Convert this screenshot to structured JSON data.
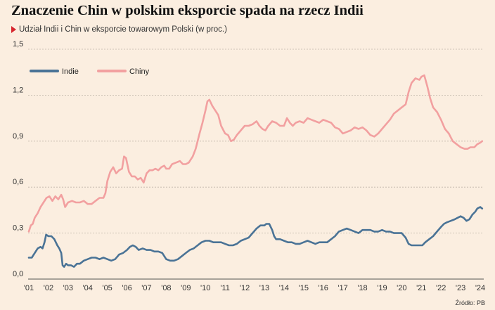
{
  "title": "Znaczenie Chin w polskim eksporcie spada na rzecz Indii",
  "subtitle": "Udział Indii i Chin w eksporcie towarowym Polski (w proc.)",
  "source": "Źródło: PB",
  "colors": {
    "background": "#fbeee0",
    "india": "#4a7396",
    "china": "#f2a0a0",
    "accent": "#d7262e"
  },
  "chart_data": {
    "type": "line",
    "title": "Znaczenie Chin w polskim eksporcie spada na rzecz Indii",
    "subtitle": "Udział Indii i Chin w eksporcie towarowym Polski (w proc.)",
    "xlim": [
      2001,
      2024.2
    ],
    "ylim": [
      0,
      1.5
    ],
    "x_ticks": [
      {
        "value": 2001,
        "label": "'01"
      },
      {
        "value": 2002,
        "label": "'02"
      },
      {
        "value": 2003,
        "label": "'03"
      },
      {
        "value": 2004,
        "label": "'04"
      },
      {
        "value": 2005,
        "label": "'05"
      },
      {
        "value": 2006,
        "label": "'06"
      },
      {
        "value": 2007,
        "label": "'07"
      },
      {
        "value": 2008,
        "label": "'08"
      },
      {
        "value": 2009,
        "label": "'09"
      },
      {
        "value": 2010,
        "label": "'10"
      },
      {
        "value": 2011,
        "label": "'11"
      },
      {
        "value": 2012,
        "label": "'12"
      },
      {
        "value": 2013,
        "label": "'13"
      },
      {
        "value": 2014,
        "label": "'14"
      },
      {
        "value": 2015,
        "label": "'15"
      },
      {
        "value": 2016,
        "label": "'16"
      },
      {
        "value": 2017,
        "label": "'17"
      },
      {
        "value": 2018,
        "label": "'18"
      },
      {
        "value": 2019,
        "label": "'19"
      },
      {
        "value": 2020,
        "label": "'20"
      },
      {
        "value": 2021,
        "label": "'21"
      },
      {
        "value": 2022,
        "label": "'22"
      },
      {
        "value": 2023,
        "label": "'23"
      },
      {
        "value": 2024,
        "label": "'24"
      }
    ],
    "y_ticks": [
      {
        "value": 0,
        "label": "0,0"
      },
      {
        "value": 0.3,
        "label": "0,3"
      },
      {
        "value": 0.6,
        "label": "0,6"
      },
      {
        "value": 0.9,
        "label": "0,9"
      },
      {
        "value": 1.2,
        "label": "1,2"
      },
      {
        "value": 1.5,
        "label": "1,5"
      }
    ],
    "grid": true,
    "legend_position": "top-left",
    "series": [
      {
        "name": "Indie",
        "color": "#4a7396",
        "points": [
          [
            2001.0,
            0.14
          ],
          [
            2001.15,
            0.14
          ],
          [
            2001.3,
            0.17
          ],
          [
            2001.45,
            0.2
          ],
          [
            2001.6,
            0.21
          ],
          [
            2001.7,
            0.2
          ],
          [
            2001.8,
            0.24
          ],
          [
            2001.88,
            0.29
          ],
          [
            2002.0,
            0.28
          ],
          [
            2002.15,
            0.28
          ],
          [
            2002.3,
            0.26
          ],
          [
            2002.45,
            0.22
          ],
          [
            2002.55,
            0.2
          ],
          [
            2002.65,
            0.17
          ],
          [
            2002.72,
            0.09
          ],
          [
            2002.8,
            0.08
          ],
          [
            2002.9,
            0.1
          ],
          [
            2003.0,
            0.09
          ],
          [
            2003.15,
            0.09
          ],
          [
            2003.3,
            0.08
          ],
          [
            2003.45,
            0.1
          ],
          [
            2003.6,
            0.1
          ],
          [
            2003.8,
            0.12
          ],
          [
            2004.0,
            0.13
          ],
          [
            2004.2,
            0.14
          ],
          [
            2004.4,
            0.14
          ],
          [
            2004.6,
            0.13
          ],
          [
            2004.8,
            0.14
          ],
          [
            2005.0,
            0.13
          ],
          [
            2005.2,
            0.12
          ],
          [
            2005.4,
            0.13
          ],
          [
            2005.6,
            0.16
          ],
          [
            2005.8,
            0.17
          ],
          [
            2006.0,
            0.19
          ],
          [
            2006.15,
            0.21
          ],
          [
            2006.3,
            0.22
          ],
          [
            2006.45,
            0.21
          ],
          [
            2006.6,
            0.19
          ],
          [
            2006.8,
            0.2
          ],
          [
            2007.0,
            0.19
          ],
          [
            2007.2,
            0.19
          ],
          [
            2007.4,
            0.18
          ],
          [
            2007.6,
            0.18
          ],
          [
            2007.8,
            0.17
          ],
          [
            2008.0,
            0.13
          ],
          [
            2008.2,
            0.12
          ],
          [
            2008.4,
            0.12
          ],
          [
            2008.6,
            0.13
          ],
          [
            2008.8,
            0.15
          ],
          [
            2009.0,
            0.17
          ],
          [
            2009.2,
            0.19
          ],
          [
            2009.4,
            0.2
          ],
          [
            2009.6,
            0.22
          ],
          [
            2009.8,
            0.24
          ],
          [
            2010.0,
            0.25
          ],
          [
            2010.2,
            0.25
          ],
          [
            2010.4,
            0.24
          ],
          [
            2010.6,
            0.24
          ],
          [
            2010.8,
            0.24
          ],
          [
            2011.0,
            0.23
          ],
          [
            2011.2,
            0.22
          ],
          [
            2011.4,
            0.22
          ],
          [
            2011.6,
            0.23
          ],
          [
            2011.8,
            0.25
          ],
          [
            2012.0,
            0.26
          ],
          [
            2012.2,
            0.27
          ],
          [
            2012.4,
            0.3
          ],
          [
            2012.6,
            0.33
          ],
          [
            2012.8,
            0.35
          ],
          [
            2013.0,
            0.35
          ],
          [
            2013.1,
            0.36
          ],
          [
            2013.25,
            0.36
          ],
          [
            2013.4,
            0.32
          ],
          [
            2013.5,
            0.28
          ],
          [
            2013.6,
            0.26
          ],
          [
            2013.8,
            0.26
          ],
          [
            2014.0,
            0.25
          ],
          [
            2014.2,
            0.24
          ],
          [
            2014.4,
            0.24
          ],
          [
            2014.6,
            0.23
          ],
          [
            2014.8,
            0.23
          ],
          [
            2015.0,
            0.24
          ],
          [
            2015.2,
            0.25
          ],
          [
            2015.4,
            0.24
          ],
          [
            2015.6,
            0.23
          ],
          [
            2015.8,
            0.24
          ],
          [
            2016.0,
            0.24
          ],
          [
            2016.2,
            0.24
          ],
          [
            2016.4,
            0.26
          ],
          [
            2016.6,
            0.28
          ],
          [
            2016.8,
            0.31
          ],
          [
            2017.0,
            0.32
          ],
          [
            2017.2,
            0.33
          ],
          [
            2017.4,
            0.32
          ],
          [
            2017.6,
            0.31
          ],
          [
            2017.8,
            0.3
          ],
          [
            2018.0,
            0.32
          ],
          [
            2018.2,
            0.32
          ],
          [
            2018.4,
            0.32
          ],
          [
            2018.6,
            0.31
          ],
          [
            2018.8,
            0.31
          ],
          [
            2019.0,
            0.32
          ],
          [
            2019.2,
            0.31
          ],
          [
            2019.4,
            0.31
          ],
          [
            2019.6,
            0.3
          ],
          [
            2019.8,
            0.3
          ],
          [
            2020.0,
            0.3
          ],
          [
            2020.2,
            0.27
          ],
          [
            2020.35,
            0.23
          ],
          [
            2020.5,
            0.22
          ],
          [
            2020.7,
            0.22
          ],
          [
            2020.9,
            0.22
          ],
          [
            2021.05,
            0.22
          ],
          [
            2021.2,
            0.24
          ],
          [
            2021.4,
            0.26
          ],
          [
            2021.6,
            0.28
          ],
          [
            2021.8,
            0.31
          ],
          [
            2022.0,
            0.34
          ],
          [
            2022.15,
            0.36
          ],
          [
            2022.3,
            0.37
          ],
          [
            2022.5,
            0.38
          ],
          [
            2022.7,
            0.39
          ],
          [
            2022.85,
            0.4
          ],
          [
            2023.0,
            0.41
          ],
          [
            2023.15,
            0.4
          ],
          [
            2023.3,
            0.38
          ],
          [
            2023.45,
            0.39
          ],
          [
            2023.6,
            0.42
          ],
          [
            2023.75,
            0.44
          ],
          [
            2023.85,
            0.46
          ],
          [
            2024.0,
            0.47
          ],
          [
            2024.1,
            0.46
          ]
        ]
      },
      {
        "name": "Chiny",
        "color": "#f2a0a0",
        "points": [
          [
            2001.0,
            0.31
          ],
          [
            2001.1,
            0.35
          ],
          [
            2001.2,
            0.36
          ],
          [
            2001.3,
            0.4
          ],
          [
            2001.45,
            0.43
          ],
          [
            2001.6,
            0.47
          ],
          [
            2001.75,
            0.5
          ],
          [
            2001.9,
            0.53
          ],
          [
            2002.05,
            0.54
          ],
          [
            2002.2,
            0.51
          ],
          [
            2002.35,
            0.54
          ],
          [
            2002.5,
            0.52
          ],
          [
            2002.65,
            0.55
          ],
          [
            2002.75,
            0.52
          ],
          [
            2002.85,
            0.47
          ],
          [
            2003.0,
            0.5
          ],
          [
            2003.2,
            0.51
          ],
          [
            2003.4,
            0.5
          ],
          [
            2003.6,
            0.5
          ],
          [
            2003.8,
            0.51
          ],
          [
            2004.0,
            0.49
          ],
          [
            2004.2,
            0.49
          ],
          [
            2004.4,
            0.51
          ],
          [
            2004.6,
            0.53
          ],
          [
            2004.8,
            0.53
          ],
          [
            2004.9,
            0.56
          ],
          [
            2005.0,
            0.64
          ],
          [
            2005.15,
            0.7
          ],
          [
            2005.3,
            0.73
          ],
          [
            2005.45,
            0.69
          ],
          [
            2005.6,
            0.71
          ],
          [
            2005.75,
            0.72
          ],
          [
            2005.85,
            0.8
          ],
          [
            2005.95,
            0.79
          ],
          [
            2006.1,
            0.7
          ],
          [
            2006.25,
            0.67
          ],
          [
            2006.4,
            0.67
          ],
          [
            2006.55,
            0.65
          ],
          [
            2006.7,
            0.66
          ],
          [
            2006.85,
            0.63
          ],
          [
            2007.0,
            0.69
          ],
          [
            2007.15,
            0.71
          ],
          [
            2007.3,
            0.71
          ],
          [
            2007.45,
            0.72
          ],
          [
            2007.6,
            0.71
          ],
          [
            2007.75,
            0.73
          ],
          [
            2007.9,
            0.74
          ],
          [
            2008.0,
            0.72
          ],
          [
            2008.15,
            0.72
          ],
          [
            2008.3,
            0.75
          ],
          [
            2008.5,
            0.76
          ],
          [
            2008.7,
            0.77
          ],
          [
            2008.85,
            0.75
          ],
          [
            2009.0,
            0.75
          ],
          [
            2009.15,
            0.76
          ],
          [
            2009.35,
            0.8
          ],
          [
            2009.5,
            0.85
          ],
          [
            2009.7,
            0.95
          ],
          [
            2009.85,
            1.02
          ],
          [
            2010.0,
            1.1
          ],
          [
            2010.1,
            1.16
          ],
          [
            2010.2,
            1.17
          ],
          [
            2010.35,
            1.13
          ],
          [
            2010.5,
            1.1
          ],
          [
            2010.65,
            1.07
          ],
          [
            2010.8,
            1.0
          ],
          [
            2011.0,
            0.95
          ],
          [
            2011.15,
            0.94
          ],
          [
            2011.3,
            0.9
          ],
          [
            2011.45,
            0.91
          ],
          [
            2011.6,
            0.94
          ],
          [
            2011.8,
            0.97
          ],
          [
            2012.0,
            1.0
          ],
          [
            2012.2,
            1.0
          ],
          [
            2012.4,
            1.01
          ],
          [
            2012.6,
            1.03
          ],
          [
            2012.75,
            1.0
          ],
          [
            2012.9,
            0.98
          ],
          [
            2013.05,
            0.97
          ],
          [
            2013.2,
            1.0
          ],
          [
            2013.4,
            1.03
          ],
          [
            2013.6,
            1.02
          ],
          [
            2013.8,
            1.0
          ],
          [
            2014.0,
            1.0
          ],
          [
            2014.15,
            1.05
          ],
          [
            2014.3,
            1.02
          ],
          [
            2014.45,
            1.0
          ],
          [
            2014.6,
            1.02
          ],
          [
            2014.8,
            1.03
          ],
          [
            2015.0,
            1.02
          ],
          [
            2015.2,
            1.05
          ],
          [
            2015.4,
            1.04
          ],
          [
            2015.6,
            1.03
          ],
          [
            2015.8,
            1.02
          ],
          [
            2016.0,
            1.04
          ],
          [
            2016.2,
            1.03
          ],
          [
            2016.4,
            1.02
          ],
          [
            2016.6,
            0.99
          ],
          [
            2016.8,
            0.98
          ],
          [
            2017.0,
            0.95
          ],
          [
            2017.2,
            0.96
          ],
          [
            2017.4,
            0.97
          ],
          [
            2017.6,
            0.99
          ],
          [
            2017.8,
            0.98
          ],
          [
            2018.0,
            0.99
          ],
          [
            2018.2,
            0.97
          ],
          [
            2018.4,
            0.94
          ],
          [
            2018.6,
            0.93
          ],
          [
            2018.8,
            0.95
          ],
          [
            2019.0,
            0.98
          ],
          [
            2019.2,
            1.01
          ],
          [
            2019.4,
            1.04
          ],
          [
            2019.6,
            1.08
          ],
          [
            2019.8,
            1.1
          ],
          [
            2020.0,
            1.12
          ],
          [
            2020.2,
            1.14
          ],
          [
            2020.35,
            1.22
          ],
          [
            2020.5,
            1.28
          ],
          [
            2020.7,
            1.31
          ],
          [
            2020.9,
            1.3
          ],
          [
            2021.0,
            1.32
          ],
          [
            2021.15,
            1.33
          ],
          [
            2021.3,
            1.26
          ],
          [
            2021.45,
            1.18
          ],
          [
            2021.6,
            1.12
          ],
          [
            2021.8,
            1.09
          ],
          [
            2022.0,
            1.04
          ],
          [
            2022.2,
            0.98
          ],
          [
            2022.4,
            0.95
          ],
          [
            2022.6,
            0.9
          ],
          [
            2022.8,
            0.88
          ],
          [
            2023.0,
            0.86
          ],
          [
            2023.2,
            0.85
          ],
          [
            2023.35,
            0.85
          ],
          [
            2023.5,
            0.86
          ],
          [
            2023.7,
            0.86
          ],
          [
            2023.85,
            0.88
          ],
          [
            2024.0,
            0.89
          ],
          [
            2024.1,
            0.9
          ]
        ]
      }
    ]
  }
}
